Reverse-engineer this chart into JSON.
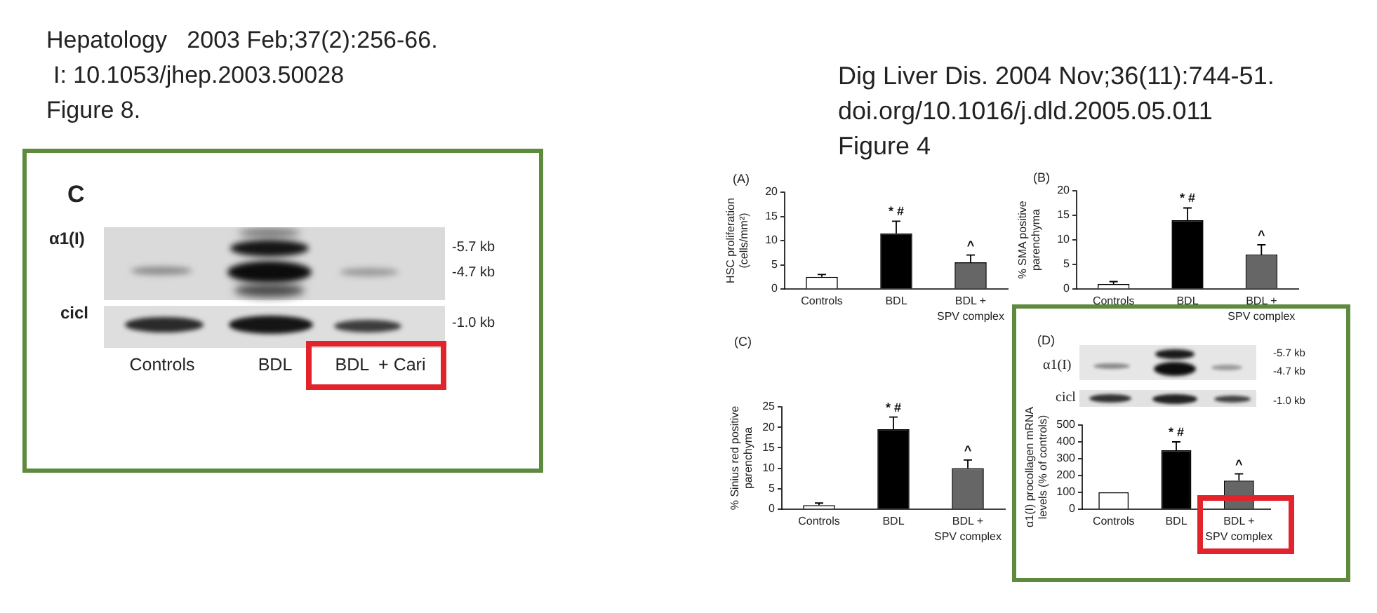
{
  "chart_data": [
    {
      "type": "other",
      "annotations": [
        "Hepatology   2003 Feb;37(2):256-66.",
        "I: 10.1053/jhep.2003.50028",
        "Figure 8.",
        "C",
        "α1(I)",
        "cicl",
        "-5.7 kb",
        "-4.7 kb",
        "-1.0 kb",
        "Controls",
        "BDL",
        "BDL  + Cari"
      ]
    },
    {
      "type": "other",
      "annotations": [
        "Dig Liver Dis. 2004 Nov;36(11):744-51.",
        "doi.org/10.1016/j.dld.2005.05.011",
        "Figure 4"
      ]
    },
    {
      "type": "bar",
      "title": "(A)",
      "ylabel": "HSC proliferation\n(cells/mm²)",
      "categories": [
        "Controls",
        "BDL",
        "BDL +\nSPV complex"
      ],
      "values": [
        2.5,
        11.5,
        5.5
      ],
      "colors": [
        "#ffffff",
        "#000000",
        "#666666"
      ],
      "errors": [
        [
          2.5,
          3
        ],
        [
          11.5,
          14
        ],
        [
          5.5,
          7
        ]
      ],
      "ylim": [
        0,
        20
      ],
      "yticks": [
        0,
        5,
        10,
        15,
        20
      ],
      "annotations": [
        {
          "text": "* #",
          "x": "BDL",
          "y": 14
        },
        {
          "text": "^",
          "x": "BDL +\nSPV complex",
          "y": 7
        }
      ]
    },
    {
      "type": "bar",
      "title": "(B)",
      "ylabel": "% SMA positive\nparenchyma",
      "categories": [
        "Controls",
        "BDL",
        "BDL +\nSPV complex"
      ],
      "values": [
        1,
        14,
        7
      ],
      "colors": [
        "#ffffff",
        "#000000",
        "#666666"
      ],
      "errors": [
        [
          1,
          1.5
        ],
        [
          14,
          16.5
        ],
        [
          7,
          9
        ]
      ],
      "ylim": [
        0,
        20
      ],
      "yticks": [
        0,
        5,
        10,
        15,
        20
      ],
      "annotations": [
        {
          "text": "* #",
          "x": "BDL",
          "y": 16.5
        },
        {
          "text": "^",
          "x": "BDL +\nSPV complex",
          "y": 9
        }
      ]
    },
    {
      "type": "bar",
      "title": "(C)",
      "ylabel": "% Sinius red positive\nparenchyma",
      "categories": [
        "Controls",
        "BDL",
        "BDL +\nSPV complex"
      ],
      "values": [
        1,
        19.5,
        10
      ],
      "colors": [
        "#ffffff",
        "#000000",
        "#666666"
      ],
      "errors": [
        [
          1,
          1.5
        ],
        [
          19.5,
          22.5
        ],
        [
          10,
          12
        ]
      ],
      "ylim": [
        0,
        25
      ],
      "yticks": [
        0,
        5,
        10,
        15,
        20,
        25
      ],
      "annotations": [
        {
          "text": "* #",
          "x": "BDL",
          "y": 22.5
        },
        {
          "text": "^",
          "x": "BDL +\nSPV complex",
          "y": 12
        }
      ]
    },
    {
      "type": "bar",
      "title": "(D)",
      "ylabel": "α1(I) procollagen mRNA\nlevels (% of controls)",
      "categories": [
        "Controls",
        "BDL",
        "BDL +\nSPV complex"
      ],
      "values": [
        100,
        350,
        170
      ],
      "colors": [
        "#ffffff",
        "#000000",
        "#666666"
      ],
      "errors": [
        null,
        [
          350,
          400
        ],
        [
          170,
          210
        ]
      ],
      "ylim": [
        0,
        500
      ],
      "yticks": [
        0,
        100,
        200,
        300,
        400,
        500
      ],
      "annotations": [
        "α1(I)",
        "cicl",
        "-5.7 kb",
        "-4.7 kb",
        "-1.0 kb",
        {
          "text": "* #",
          "x": "BDL",
          "y": 400
        },
        {
          "text": "^",
          "x": "BDL +\nSPV complex",
          "y": 210
        }
      ]
    }
  ]
}
